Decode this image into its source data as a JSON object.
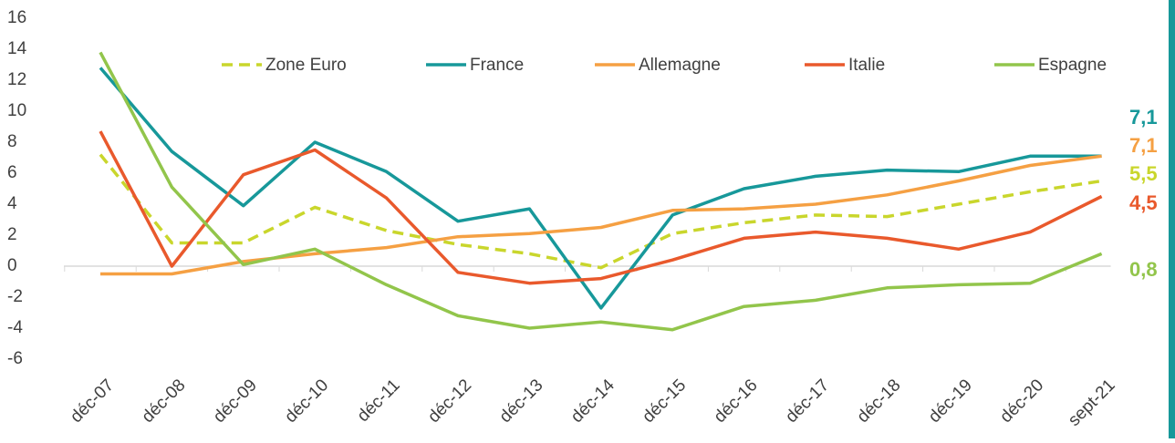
{
  "chart_data": {
    "type": "line",
    "categories": [
      "déc-07",
      "déc-08",
      "déc-09",
      "déc-10",
      "déc-11",
      "déc-12",
      "déc-13",
      "déc-14",
      "déc-15",
      "déc-16",
      "déc-17",
      "déc-18",
      "déc-19",
      "déc-20",
      "sept-21"
    ],
    "ylim": [
      -6,
      16
    ],
    "yticks": [
      -6,
      -4,
      -2,
      0,
      2,
      4,
      6,
      8,
      10,
      12,
      14,
      16
    ],
    "series": [
      {
        "name": "Zone Euro",
        "color": "#c9d62c",
        "dash": true,
        "values": [
          7.2,
          1.5,
          1.5,
          3.8,
          2.3,
          1.4,
          0.8,
          -0.1,
          2.1,
          2.8,
          3.3,
          3.2,
          4.0,
          4.8,
          5.5
        ],
        "value_labels": [
          null,
          null,
          null,
          null,
          null,
          null,
          null,
          null,
          null,
          null,
          null,
          null,
          null,
          null,
          "5,5"
        ]
      },
      {
        "name": "France",
        "color": "#17989a",
        "dash": false,
        "values": [
          12.8,
          7.4,
          3.9,
          8.0,
          6.1,
          2.9,
          3.7,
          -2.7,
          3.3,
          5.0,
          5.8,
          6.2,
          6.1,
          7.1,
          7.1
        ],
        "value_labels": [
          null,
          null,
          null,
          null,
          null,
          null,
          null,
          null,
          null,
          null,
          null,
          null,
          null,
          null,
          "7,1"
        ]
      },
      {
        "name": "Allemagne",
        "color": "#f5a043",
        "dash": false,
        "values": [
          -0.5,
          -0.5,
          0.3,
          0.8,
          1.2,
          1.9,
          2.1,
          2.5,
          3.6,
          3.7,
          4.0,
          4.6,
          5.5,
          6.5,
          7.1
        ],
        "value_labels": [
          null,
          null,
          null,
          null,
          null,
          null,
          null,
          null,
          null,
          null,
          null,
          null,
          null,
          null,
          "7,1"
        ]
      },
      {
        "name": "Italie",
        "color": "#e9592c",
        "dash": false,
        "values": [
          8.7,
          0.0,
          5.9,
          7.5,
          4.4,
          -0.4,
          -1.1,
          -0.8,
          0.4,
          1.8,
          2.2,
          1.8,
          1.1,
          2.2,
          4.5
        ],
        "value_labels": [
          null,
          null,
          null,
          null,
          null,
          null,
          null,
          null,
          null,
          null,
          null,
          null,
          null,
          null,
          "4,5"
        ]
      },
      {
        "name": "Espagne",
        "color": "#92c54b",
        "dash": false,
        "values": [
          13.8,
          5.1,
          0.1,
          1.1,
          -1.2,
          -3.2,
          -4.0,
          -3.6,
          -4.1,
          -2.6,
          -2.2,
          -1.4,
          -1.2,
          -1.1,
          0.8
        ],
        "value_labels": [
          null,
          null,
          null,
          null,
          null,
          null,
          null,
          null,
          null,
          null,
          null,
          null,
          null,
          null,
          "0,8"
        ]
      }
    ]
  }
}
